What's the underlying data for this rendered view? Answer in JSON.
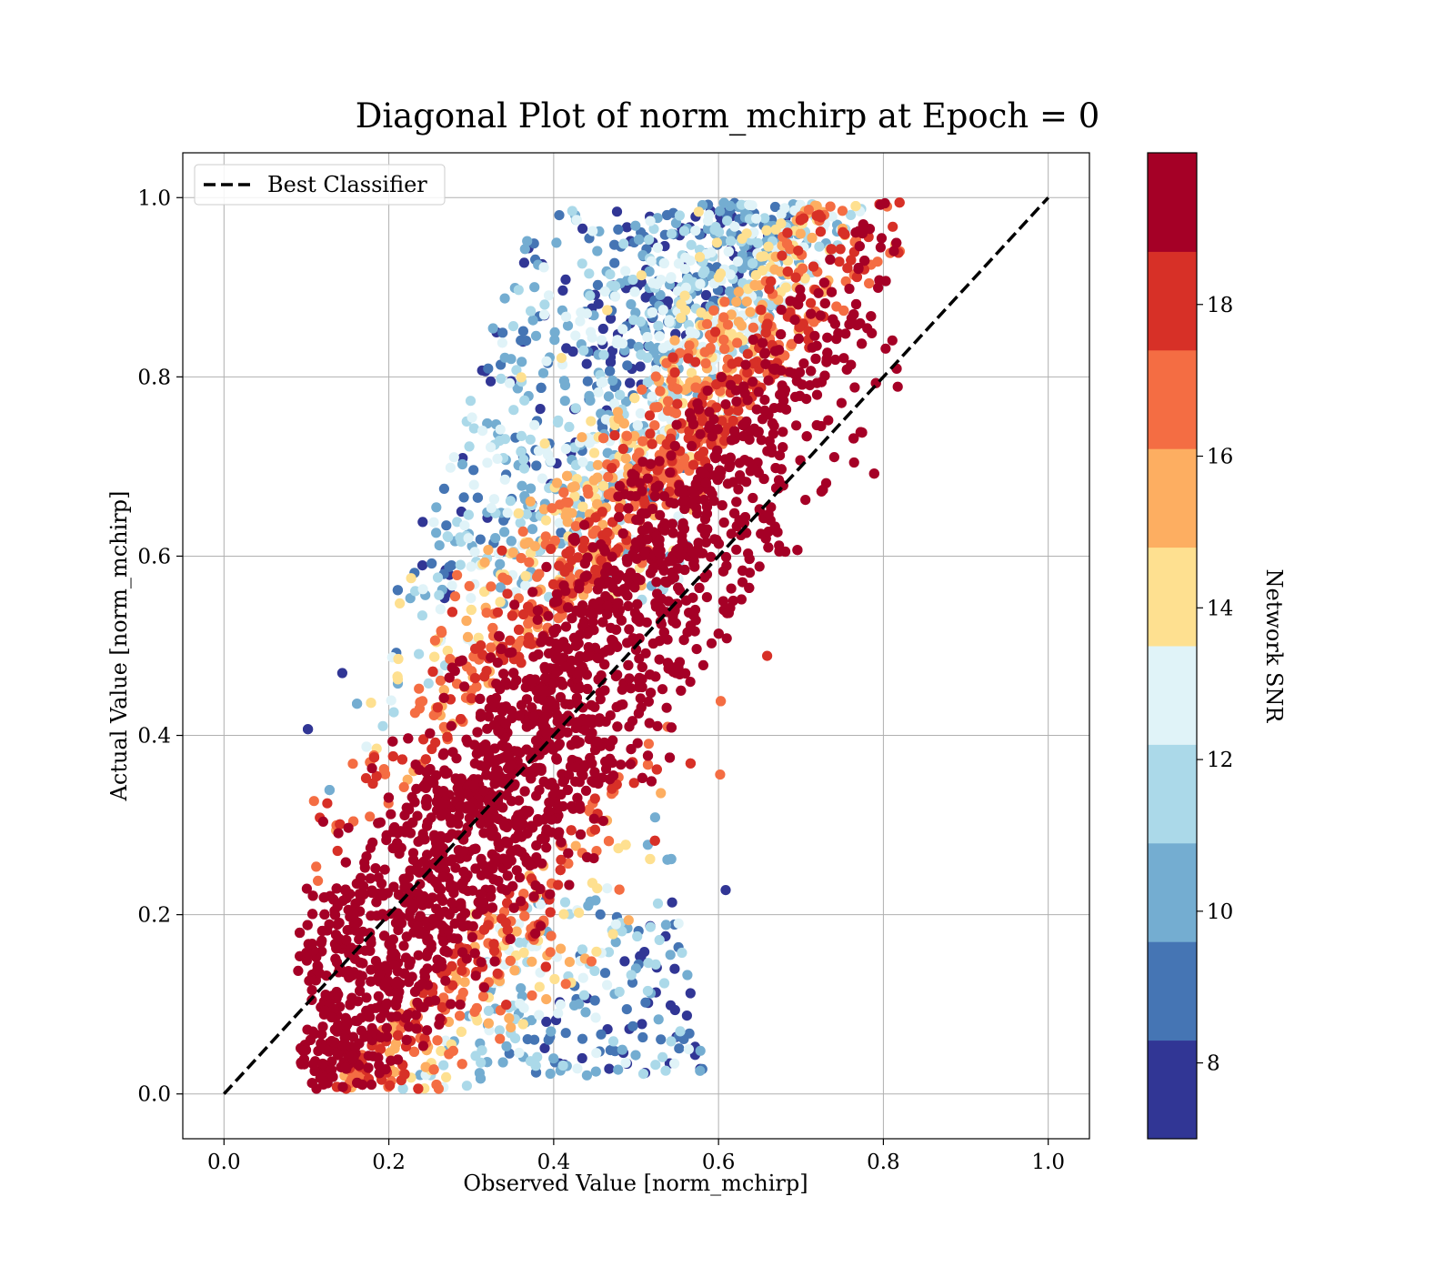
{
  "chart_data": {
    "type": "scatter",
    "title": "Diagonal Plot of norm_mchirp at Epoch = 0",
    "xlabel": "Observed Value [norm_mchirp]",
    "ylabel": "Actual Value [norm_mchirp]",
    "xlim": [
      -0.05,
      1.05
    ],
    "ylim": [
      -0.05,
      1.05
    ],
    "xticks": [
      "0.0",
      "0.2",
      "0.4",
      "0.6",
      "0.8",
      "1.0"
    ],
    "yticks": [
      "0.0",
      "0.2",
      "0.4",
      "0.6",
      "0.8",
      "1.0"
    ],
    "grid": true,
    "legend": {
      "position": "top-left",
      "entries": [
        "Best Classifier"
      ]
    },
    "reference_line": {
      "name": "Best Classifier",
      "style": "dashed",
      "color": "#000000",
      "x": [
        0.0,
        1.0
      ],
      "y": [
        0.0,
        1.0
      ]
    },
    "scatter_summary": {
      "color_variable": "Network SNR",
      "x_range": [
        0.09,
        0.82
      ],
      "y_range": [
        0.0,
        1.0
      ],
      "low_snr_region": "upper-left and lower-right edges of the point cloud",
      "high_snr_region": "dense band along the diagonal"
    },
    "colorbar": {
      "label": "Network SNR",
      "range": [
        7,
        20
      ],
      "ticks": [
        "8",
        "10",
        "12",
        "14",
        "16",
        "18"
      ],
      "tick_values": [
        8,
        10,
        12,
        14,
        16,
        18
      ],
      "colors": [
        "#313695",
        "#4575b4",
        "#74add1",
        "#abd9e9",
        "#e0f3f8",
        "#fee090",
        "#fdae61",
        "#f46d43",
        "#d73027",
        "#a50026"
      ]
    }
  }
}
